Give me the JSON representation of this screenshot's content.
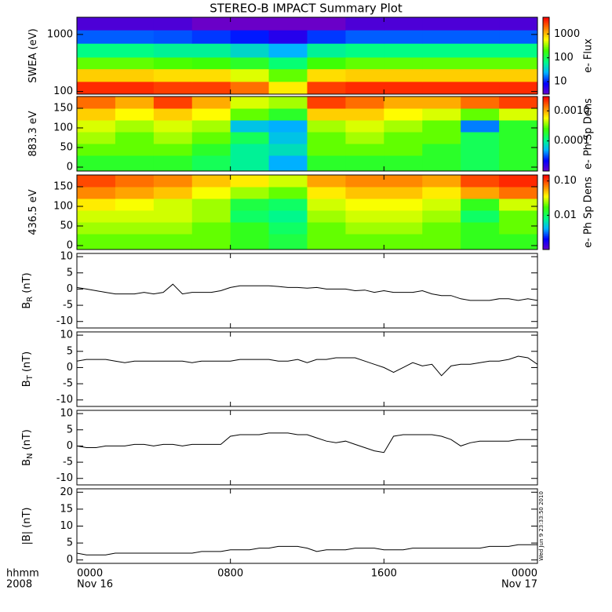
{
  "title": "STEREO-B IMPACT Summary Plot",
  "x_axis": {
    "xlim": [
      0,
      24
    ],
    "xticks": [
      {
        "value": 0,
        "label": "0000"
      },
      {
        "value": 8,
        "label": "0800"
      },
      {
        "value": 16,
        "label": "1600"
      },
      {
        "value": 24,
        "label": "0000"
      }
    ],
    "start_date": "Nov 16",
    "end_date": "Nov 17",
    "time_format": "hhmm",
    "year": "2008"
  },
  "timestamp": "Wed Jun  9 23:33:50 2010",
  "chart_data": [
    {
      "type": "heatmap",
      "ylabel": "SWEA (eV)",
      "ylog": true,
      "ylim": [
        90,
        2000
      ],
      "yticks": [
        100,
        1000
      ],
      "xbins": [
        0,
        2,
        4,
        6,
        8,
        10,
        12,
        14,
        16,
        18,
        20,
        22,
        24
      ],
      "ybins": [
        90,
        150,
        250,
        400,
        700,
        1200,
        2000
      ],
      "z": [
        [
          3500,
          3500,
          3000,
          3000,
          2000,
          700,
          3000,
          3500,
          3500,
          3500,
          3500,
          3500
        ],
        [
          900,
          900,
          800,
          800,
          500,
          250,
          800,
          900,
          900,
          900,
          900,
          900
        ],
        [
          250,
          250,
          220,
          200,
          150,
          80,
          200,
          250,
          250,
          250,
          250,
          250
        ],
        [
          70,
          70,
          60,
          60,
          40,
          25,
          60,
          70,
          70,
          70,
          70,
          70
        ],
        [
          15,
          15,
          14,
          12,
          10,
          6,
          12,
          15,
          15,
          15,
          15,
          15
        ],
        [
          4,
          4,
          4,
          3,
          3,
          2,
          3,
          4,
          4,
          4,
          4,
          4
        ]
      ],
      "clog": true,
      "clim": [
        3,
        5000
      ],
      "cticks": [
        10,
        100,
        1000
      ],
      "clabel": "e- Flux",
      "colormap": [
        "#6a00c8",
        "#0000ff",
        "#00b4ff",
        "#00ff80",
        "#40ff00",
        "#ffff00",
        "#ff8000",
        "#ff0000"
      ]
    },
    {
      "type": "heatmap",
      "ylabel": "883.3 eV",
      "ylog": false,
      "ylim": [
        -10,
        180
      ],
      "yticks": [
        0,
        50,
        100,
        150
      ],
      "xbins": [
        0,
        2,
        4,
        6,
        8,
        10,
        12,
        14,
        16,
        18,
        20,
        22,
        24
      ],
      "ybins": [
        -10,
        30,
        60,
        90,
        120,
        150,
        180
      ],
      "z": [
        [
          0.0002,
          0.0002,
          0.0002,
          0.00015,
          0.0001,
          5e-05,
          0.0002,
          0.0002,
          0.0002,
          0.0002,
          0.00015,
          0.0002
        ],
        [
          0.0003,
          0.0003,
          0.0003,
          0.0002,
          0.0001,
          8e-05,
          0.0003,
          0.0003,
          0.0003,
          0.0002,
          0.00015,
          0.0002
        ],
        [
          0.0004,
          0.0003,
          0.0004,
          0.0003,
          0.00015,
          6e-05,
          0.0003,
          0.0004,
          0.0003,
          0.0003,
          0.00015,
          0.0002
        ],
        [
          0.0005,
          0.0004,
          0.0005,
          0.0004,
          6e-05,
          5e-05,
          0.0004,
          0.0005,
          0.0004,
          0.0003,
          4e-05,
          0.0002
        ],
        [
          0.0008,
          0.0006,
          0.0008,
          0.0006,
          0.0003,
          0.0002,
          0.0008,
          0.0008,
          0.0006,
          0.0005,
          0.0003,
          0.0005
        ],
        [
          0.0015,
          0.001,
          0.002,
          0.001,
          0.0005,
          0.0004,
          0.002,
          0.0015,
          0.001,
          0.001,
          0.0015,
          0.002
        ]
      ],
      "clog": true,
      "clim": [
        1e-05,
        0.003
      ],
      "cticks": [
        0.0001,
        {
          "value": 0.001,
          "label": "0.0010"
        }
      ],
      "clabel": "e- Ph Sp Dens",
      "colormap": [
        "#6a00c8",
        "#0000ff",
        "#00b4ff",
        "#00ff80",
        "#40ff00",
        "#ffff00",
        "#ff8000",
        "#ff0000"
      ]
    },
    {
      "type": "heatmap",
      "ylabel": "436.5 eV",
      "ylog": false,
      "ylim": [
        -10,
        180
      ],
      "yticks": [
        0,
        50,
        100,
        150
      ],
      "xbins": [
        0,
        2,
        4,
        6,
        8,
        10,
        12,
        14,
        16,
        18,
        20,
        22,
        24
      ],
      "ybins": [
        -10,
        30,
        60,
        90,
        120,
        150,
        180
      ],
      "z": [
        [
          0.02,
          0.02,
          0.02,
          0.02,
          0.015,
          0.012,
          0.02,
          0.02,
          0.02,
          0.02,
          0.015,
          0.015
        ],
        [
          0.025,
          0.025,
          0.025,
          0.02,
          0.015,
          0.01,
          0.02,
          0.025,
          0.025,
          0.02,
          0.015,
          0.02
        ],
        [
          0.03,
          0.03,
          0.03,
          0.025,
          0.01,
          0.008,
          0.025,
          0.03,
          0.03,
          0.025,
          0.01,
          0.02
        ],
        [
          0.04,
          0.035,
          0.03,
          0.025,
          0.012,
          0.01,
          0.03,
          0.035,
          0.035,
          0.03,
          0.015,
          0.03
        ],
        [
          0.07,
          0.06,
          0.05,
          0.035,
          0.025,
          0.02,
          0.04,
          0.05,
          0.05,
          0.04,
          0.06,
          0.08
        ],
        [
          0.1,
          0.08,
          0.07,
          0.05,
          0.04,
          0.03,
          0.06,
          0.07,
          0.07,
          0.06,
          0.1,
          0.12
        ]
      ],
      "clog": true,
      "clim": [
        0.001,
        0.15
      ],
      "cticks": [
        0.01,
        {
          "value": 0.1,
          "label": "0.10"
        }
      ],
      "clabel": "e- Ph Sp Dens",
      "colormap": [
        "#6a00c8",
        "#0000ff",
        "#00b4ff",
        "#00ff80",
        "#40ff00",
        "#ffff00",
        "#ff8000",
        "#ff0000"
      ]
    },
    {
      "type": "line",
      "ylabel": "B",
      "ylabel_sub": "R",
      "ylabel_unit": "(nT)",
      "color": "#000000",
      "ylim": [
        -12,
        11
      ],
      "yticks": [
        -10,
        -5,
        0,
        5,
        10
      ],
      "x": [
        0,
        0.5,
        1,
        1.5,
        2,
        2.5,
        3,
        3.5,
        4,
        4.5,
        5,
        5.5,
        6,
        6.5,
        7,
        7.5,
        8,
        8.5,
        9,
        9.5,
        10,
        10.5,
        11,
        11.5,
        12,
        12.5,
        13,
        13.5,
        14,
        14.5,
        15,
        15.5,
        16,
        16.5,
        17,
        17.5,
        18,
        18.5,
        19,
        19.5,
        20,
        20.5,
        21,
        21.5,
        22,
        22.5,
        23,
        23.5,
        24
      ],
      "values": [
        0.5,
        0,
        -0.5,
        -1,
        -1.5,
        -1.5,
        -1.5,
        -1,
        -1.5,
        -1,
        1.5,
        -1.5,
        -1,
        -1,
        -1,
        -0.5,
        0.5,
        1,
        1,
        1,
        1,
        0.8,
        0.5,
        0.5,
        0.3,
        0.5,
        0,
        0,
        0,
        -0.5,
        -0.3,
        -1,
        -0.5,
        -1,
        -1,
        -1,
        -0.5,
        -1.5,
        -2,
        -2,
        -3,
        -3.5,
        -3.5,
        -3.5,
        -3,
        -3,
        -3.5,
        -3,
        -3.5
      ]
    },
    {
      "type": "line",
      "ylabel": "B",
      "ylabel_sub": "T",
      "ylabel_unit": "(nT)",
      "color": "#000000",
      "ylim": [
        -12,
        11
      ],
      "yticks": [
        -10,
        -5,
        0,
        5,
        10
      ],
      "x": [
        0,
        0.5,
        1,
        1.5,
        2,
        2.5,
        3,
        3.5,
        4,
        4.5,
        5,
        5.5,
        6,
        6.5,
        7,
        7.5,
        8,
        8.5,
        9,
        9.5,
        10,
        10.5,
        11,
        11.5,
        12,
        12.5,
        13,
        13.5,
        14,
        14.5,
        15,
        15.5,
        16,
        16.5,
        17,
        17.5,
        18,
        18.5,
        19,
        19.5,
        20,
        20.5,
        21,
        21.5,
        22,
        22.5,
        23,
        23.5,
        24
      ],
      "values": [
        2,
        2.5,
        2.5,
        2.5,
        2,
        1.5,
        2,
        2,
        2,
        2,
        2,
        2,
        1.5,
        2,
        2,
        2,
        2,
        2.5,
        2.5,
        2.5,
        2.5,
        2,
        2,
        2.5,
        1.5,
        2.5,
        2.5,
        3,
        3,
        3,
        2,
        1,
        0,
        -1.5,
        0,
        1.5,
        0.5,
        1,
        -2.5,
        0.5,
        1,
        1,
        1.5,
        2,
        2,
        2.5,
        3.5,
        3,
        1
      ]
    },
    {
      "type": "line",
      "ylabel": "B",
      "ylabel_sub": "N",
      "ylabel_unit": "(nT)",
      "color": "#000000",
      "ylim": [
        -12,
        11
      ],
      "yticks": [
        -10,
        -5,
        0,
        5,
        10
      ],
      "x": [
        0,
        0.5,
        1,
        1.5,
        2,
        2.5,
        3,
        3.5,
        4,
        4.5,
        5,
        5.5,
        6,
        6.5,
        7,
        7.5,
        8,
        8.5,
        9,
        9.5,
        10,
        10.5,
        11,
        11.5,
        12,
        12.5,
        13,
        13.5,
        14,
        14.5,
        15,
        15.5,
        16,
        16.5,
        17,
        17.5,
        18,
        18.5,
        19,
        19.5,
        20,
        20.5,
        21,
        21.5,
        22,
        22.5,
        23,
        23.5,
        24
      ],
      "values": [
        0,
        -0.5,
        -0.5,
        0,
        0,
        0,
        0.5,
        0.5,
        0,
        0.5,
        0.5,
        0,
        0.5,
        0.5,
        0.5,
        0.5,
        3,
        3.5,
        3.5,
        3.5,
        4,
        4,
        4,
        3.5,
        3.5,
        2.5,
        1.5,
        1,
        1.5,
        0.5,
        -0.5,
        -1.5,
        -2,
        3,
        3.5,
        3.5,
        3.5,
        3.5,
        3,
        2,
        0,
        1,
        1.5,
        1.5,
        1.5,
        1.5,
        2,
        2,
        2
      ]
    },
    {
      "type": "line",
      "ylabel": "|B|",
      "ylabel_unit": "(nT)",
      "color": "#000000",
      "ylim": [
        -1,
        21
      ],
      "yticks": [
        0,
        5,
        10,
        15,
        20
      ],
      "x": [
        0,
        0.5,
        1,
        1.5,
        2,
        2.5,
        3,
        3.5,
        4,
        4.5,
        5,
        5.5,
        6,
        6.5,
        7,
        7.5,
        8,
        8.5,
        9,
        9.5,
        10,
        10.5,
        11,
        11.5,
        12,
        12.5,
        13,
        13.5,
        14,
        14.5,
        15,
        15.5,
        16,
        16.5,
        17,
        17.5,
        18,
        18.5,
        19,
        19.5,
        20,
        20.5,
        21,
        21.5,
        22,
        22.5,
        23,
        23.5,
        24
      ],
      "values": [
        2,
        1.5,
        1.5,
        1.5,
        2,
        2,
        2,
        2,
        2,
        2,
        2,
        2,
        2,
        2.5,
        2.5,
        2.5,
        3,
        3,
        3,
        3.5,
        3.5,
        4,
        4,
        4,
        3.5,
        2.5,
        3,
        3,
        3,
        3.5,
        3.5,
        3.5,
        3,
        3,
        3,
        3.5,
        3.5,
        3.5,
        3.5,
        3.5,
        3.5,
        3.5,
        3.5,
        4,
        4,
        4,
        4.5,
        4.5,
        4.5
      ]
    }
  ]
}
